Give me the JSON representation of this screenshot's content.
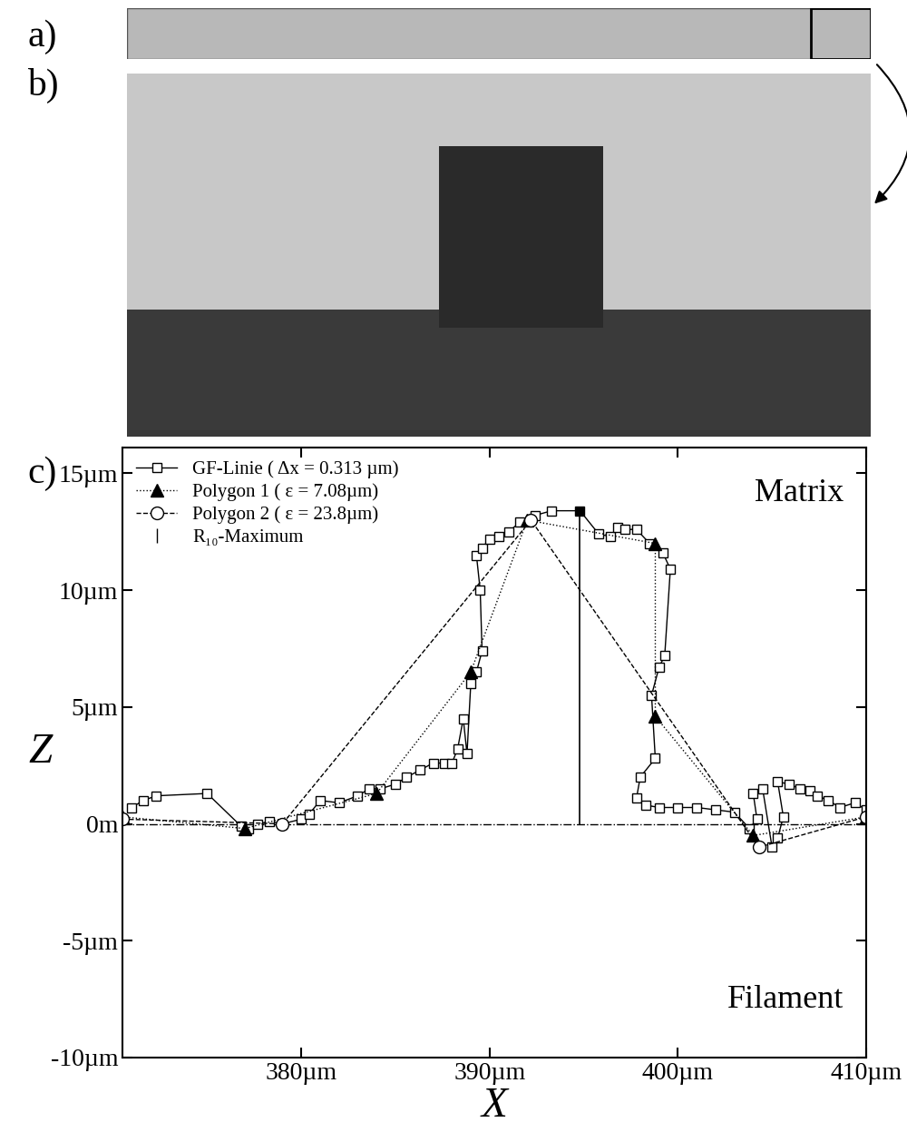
{
  "panel_labels": [
    "a)",
    "b)",
    "c)"
  ],
  "chart_data": {
    "type": "line",
    "x_label": "X",
    "y_label": "Z",
    "annotations": [
      "Matrix",
      "Filament"
    ],
    "xlim": [
      370.5,
      410
    ],
    "xticks": [
      {
        "value": 380,
        "label": "380µm"
      },
      {
        "value": 390,
        "label": "390µm"
      },
      {
        "value": 400,
        "label": "400µm"
      },
      {
        "value": 410,
        "label": "410µm"
      }
    ],
    "ylim": [
      -10,
      16.1
    ],
    "yticks": [
      {
        "value": -10,
        "label": "-10µm"
      },
      {
        "value": -5,
        "label": "-5µm"
      },
      {
        "value": 0,
        "label": "0m"
      },
      {
        "value": 5,
        "label": "5µm"
      },
      {
        "value": 10,
        "label": "10µm"
      },
      {
        "value": 15,
        "label": "15µm"
      }
    ],
    "legend": "upper left",
    "grid": false,
    "reference_line": {
      "y": 0,
      "line_style": "dashdot"
    },
    "series": [
      {
        "name": "GF-Linie ( Δx = 0.313 µm)",
        "color": "#000000",
        "marker": "square",
        "line_style": "solid",
        "x": [
          371.0,
          371.6,
          372.3,
          375.0,
          376.8,
          377.2,
          377.7,
          378.3,
          379.0,
          380.0,
          380.4,
          381.0,
          382.0,
          383.0,
          383.6,
          384.2,
          385.0,
          385.6,
          386.3,
          387.0,
          387.6,
          388.0,
          388.3,
          388.6,
          388.8,
          389.0,
          389.3,
          389.6,
          389.5,
          389.3,
          389.6,
          390.0,
          390.5,
          391.0,
          391.6,
          392.4,
          393.3,
          394.8,
          395.8,
          396.4,
          396.8,
          397.2,
          397.8,
          398.5,
          399.2,
          399.6,
          399.3,
          399.0,
          398.6,
          398.8,
          398.0,
          397.8,
          398.3,
          399.0,
          400.0,
          401.0,
          402.0,
          403.0,
          403.8,
          404.2,
          404.0,
          404.5,
          405.0,
          405.3,
          405.6,
          405.3,
          405.9,
          406.5,
          407.0,
          407.4,
          408.0,
          408.6,
          409.4,
          410.0
        ],
        "values": [
          0.7,
          1.0,
          1.2,
          1.3,
          -0.1,
          -0.2,
          0.0,
          0.1,
          0.0,
          0.2,
          0.4,
          1.0,
          0.9,
          1.2,
          1.5,
          1.5,
          1.7,
          2.0,
          2.3,
          2.6,
          2.6,
          2.6,
          3.2,
          4.5,
          3.0,
          6.0,
          6.5,
          7.4,
          10.0,
          11.5,
          11.8,
          12.2,
          12.3,
          12.5,
          12.9,
          13.2,
          13.4,
          13.4,
          12.4,
          12.3,
          12.7,
          12.6,
          12.6,
          12.0,
          11.6,
          10.9,
          7.2,
          6.7,
          5.5,
          2.8,
          2.0,
          1.1,
          0.8,
          0.7,
          0.7,
          0.7,
          0.6,
          0.5,
          -0.2,
          0.2,
          1.3,
          1.5,
          -1.0,
          -0.6,
          0.3,
          1.8,
          1.7,
          1.5,
          1.4,
          1.2,
          1.0,
          0.7,
          0.9,
          0.6
        ]
      },
      {
        "name": "Polygon 1 ( ε = 7.08µm)",
        "color": "#000000",
        "marker": "triangle",
        "line_style": "dotted",
        "x": [
          370.5,
          377.0,
          384.0,
          389.0,
          392.0,
          398.8,
          398.8,
          404.0,
          410.0
        ],
        "values": [
          0.3,
          -0.2,
          1.3,
          6.5,
          13.0,
          12.0,
          4.6,
          -0.5,
          0.3
        ]
      },
      {
        "name": "Polygon 2 ( ε = 23.8µm)",
        "color": "#000000",
        "marker": "circle",
        "line_style": "dashed",
        "x": [
          370.5,
          379.0,
          392.2,
          404.3,
          410.0
        ],
        "values": [
          0.2,
          0.0,
          13.0,
          -1.0,
          0.3
        ]
      },
      {
        "name": "R₁₀-Maximum",
        "type": "stem",
        "color": "#000000",
        "marker": "square",
        "line_style": "solid",
        "x": [
          394.8
        ],
        "values": [
          13.4
        ]
      }
    ]
  }
}
